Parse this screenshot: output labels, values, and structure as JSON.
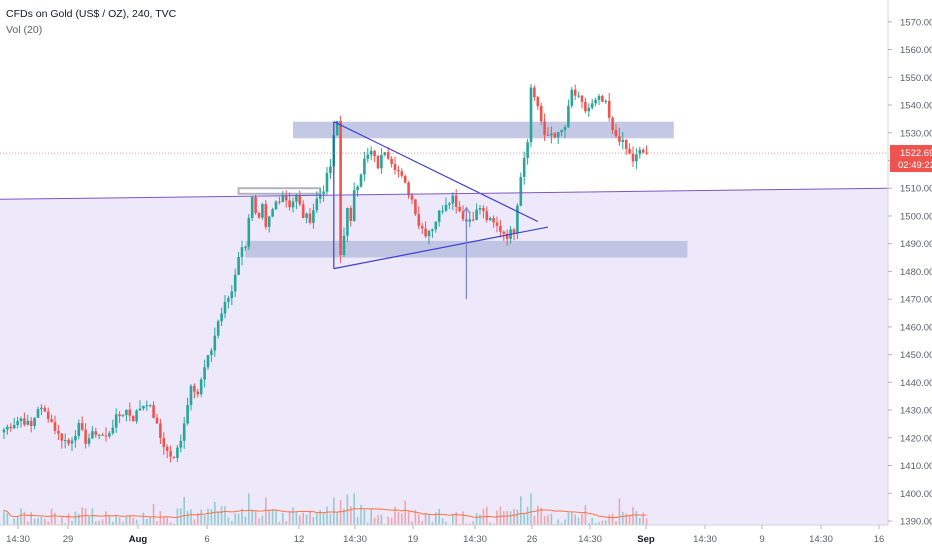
{
  "legend": {
    "title": "CFDs on Gold (US$ / OZ), 240, TVC",
    "volume_label": "Vol (20)"
  },
  "price_tag": {
    "price": "1522.69",
    "countdown": "02:49:22",
    "color": "#ef5350"
  },
  "colors": {
    "up": "#26a69a",
    "down": "#ef5350",
    "zone": "#b8bedf",
    "band": "#ede9fb",
    "trendline": "#3f3fcf",
    "horizontal_line": "#7e57c2",
    "volume_ma": "#ff7043"
  },
  "chart_data": {
    "type": "candlestick",
    "title": "CFDs on Gold (US$ / OZ), 240, TVC",
    "interval": "240",
    "x_ticks": [
      "14:30",
      "29",
      "Aug",
      "6",
      "12",
      "14:30",
      "19",
      "14:30",
      "26",
      "14:30",
      "Sep",
      "14:30",
      "9",
      "14:30",
      "16"
    ],
    "bold_x_ticks": [
      "Aug",
      "Sep"
    ],
    "y_ticks": [
      1390,
      1400,
      1410,
      1420,
      1430,
      1440,
      1450,
      1460,
      1470,
      1480,
      1490,
      1500,
      1510,
      1520,
      1530,
      1540,
      1550,
      1560,
      1570
    ],
    "ylim": [
      1385.5,
      1573
    ],
    "last_price": 1522.69,
    "grid": false,
    "price_path": [
      [
        0,
        1423
      ],
      [
        5,
        1427
      ],
      [
        8,
        1424
      ],
      [
        10,
        1431
      ],
      [
        13,
        1428
      ],
      [
        16,
        1421
      ],
      [
        19,
        1418
      ],
      [
        22,
        1424
      ],
      [
        24,
        1419
      ],
      [
        27,
        1422
      ],
      [
        30,
        1420
      ],
      [
        33,
        1427
      ],
      [
        36,
        1430
      ],
      [
        38,
        1427
      ],
      [
        40,
        1431
      ],
      [
        42,
        1433
      ],
      [
        44,
        1428
      ],
      [
        46,
        1420
      ],
      [
        48,
        1415
      ],
      [
        50,
        1412
      ],
      [
        52,
        1420
      ],
      [
        54,
        1432
      ],
      [
        55,
        1440
      ],
      [
        57,
        1436
      ],
      [
        59,
        1445
      ],
      [
        61,
        1452
      ],
      [
        63,
        1462
      ],
      [
        65,
        1468
      ],
      [
        67,
        1473
      ],
      [
        69,
        1486
      ],
      [
        71,
        1490
      ],
      [
        72,
        1500
      ],
      [
        73,
        1506
      ],
      [
        74,
        1500
      ],
      [
        75,
        1498
      ],
      [
        76,
        1503
      ],
      [
        77,
        1495
      ],
      [
        78,
        1499
      ],
      [
        80,
        1505
      ],
      [
        82,
        1508
      ],
      [
        84,
        1504
      ],
      [
        86,
        1507
      ],
      [
        88,
        1500
      ],
      [
        90,
        1499
      ],
      [
        92,
        1506
      ],
      [
        94,
        1510
      ],
      [
        96,
        1518
      ],
      [
        97,
        1528
      ],
      [
        98,
        1534
      ],
      [
        99,
        1486
      ],
      [
        101,
        1502
      ],
      [
        102,
        1497
      ],
      [
        103,
        1510
      ],
      [
        104,
        1512
      ],
      [
        106,
        1520
      ],
      [
        108,
        1523
      ],
      [
        110,
        1518
      ],
      [
        112,
        1524
      ],
      [
        114,
        1520
      ],
      [
        116,
        1516
      ],
      [
        118,
        1511
      ],
      [
        120,
        1506
      ],
      [
        121,
        1502
      ],
      [
        122,
        1497
      ],
      [
        124,
        1494
      ],
      [
        126,
        1496
      ],
      [
        128,
        1501
      ],
      [
        130,
        1505
      ],
      [
        132,
        1507
      ],
      [
        134,
        1502
      ],
      [
        136,
        1498
      ],
      [
        138,
        1500
      ],
      [
        140,
        1503
      ],
      [
        142,
        1499
      ],
      [
        144,
        1497
      ],
      [
        146,
        1495
      ],
      [
        148,
        1493
      ],
      [
        150,
        1495
      ],
      [
        152,
        1515
      ],
      [
        154,
        1528
      ],
      [
        155,
        1546
      ],
      [
        157,
        1540
      ],
      [
        159,
        1528
      ],
      [
        161,
        1530
      ],
      [
        163,
        1529
      ],
      [
        165,
        1532
      ],
      [
        167,
        1545
      ],
      [
        169,
        1542
      ],
      [
        171,
        1538
      ],
      [
        173,
        1540
      ],
      [
        175,
        1542
      ],
      [
        177,
        1540
      ],
      [
        179,
        1530
      ],
      [
        181,
        1528
      ],
      [
        183,
        1524
      ],
      [
        185,
        1520
      ],
      [
        187,
        1523
      ],
      [
        189,
        1522.69
      ]
    ],
    "annotations": {
      "resistance_zone": {
        "x": [
          85,
          197
        ],
        "y": [
          1528,
          1534
        ]
      },
      "support_zone": {
        "x": [
          71,
          201
        ],
        "y": [
          1485,
          1491
        ]
      },
      "flag_box": {
        "x": [
          69,
          93
        ],
        "y": [
          1508,
          1510
        ]
      },
      "triangle": {
        "upper": [
          [
            97,
            1534
          ],
          [
            157,
            1498
          ]
        ],
        "lower": [
          [
            97,
            1481
          ],
          [
            160,
            1496
          ]
        ],
        "apex_line": [
          [
            97,
            1534
          ],
          [
            97,
            1481
          ]
        ]
      },
      "arrow": {
        "x": 136,
        "from": 1470,
        "to": 1503
      },
      "horizontal_line": {
        "from": [
          0,
          1506
        ],
        "to": [
          260,
          1510
        ]
      }
    },
    "volume": {
      "label": "Vol (20)",
      "max_height_price_units": 14
    }
  }
}
